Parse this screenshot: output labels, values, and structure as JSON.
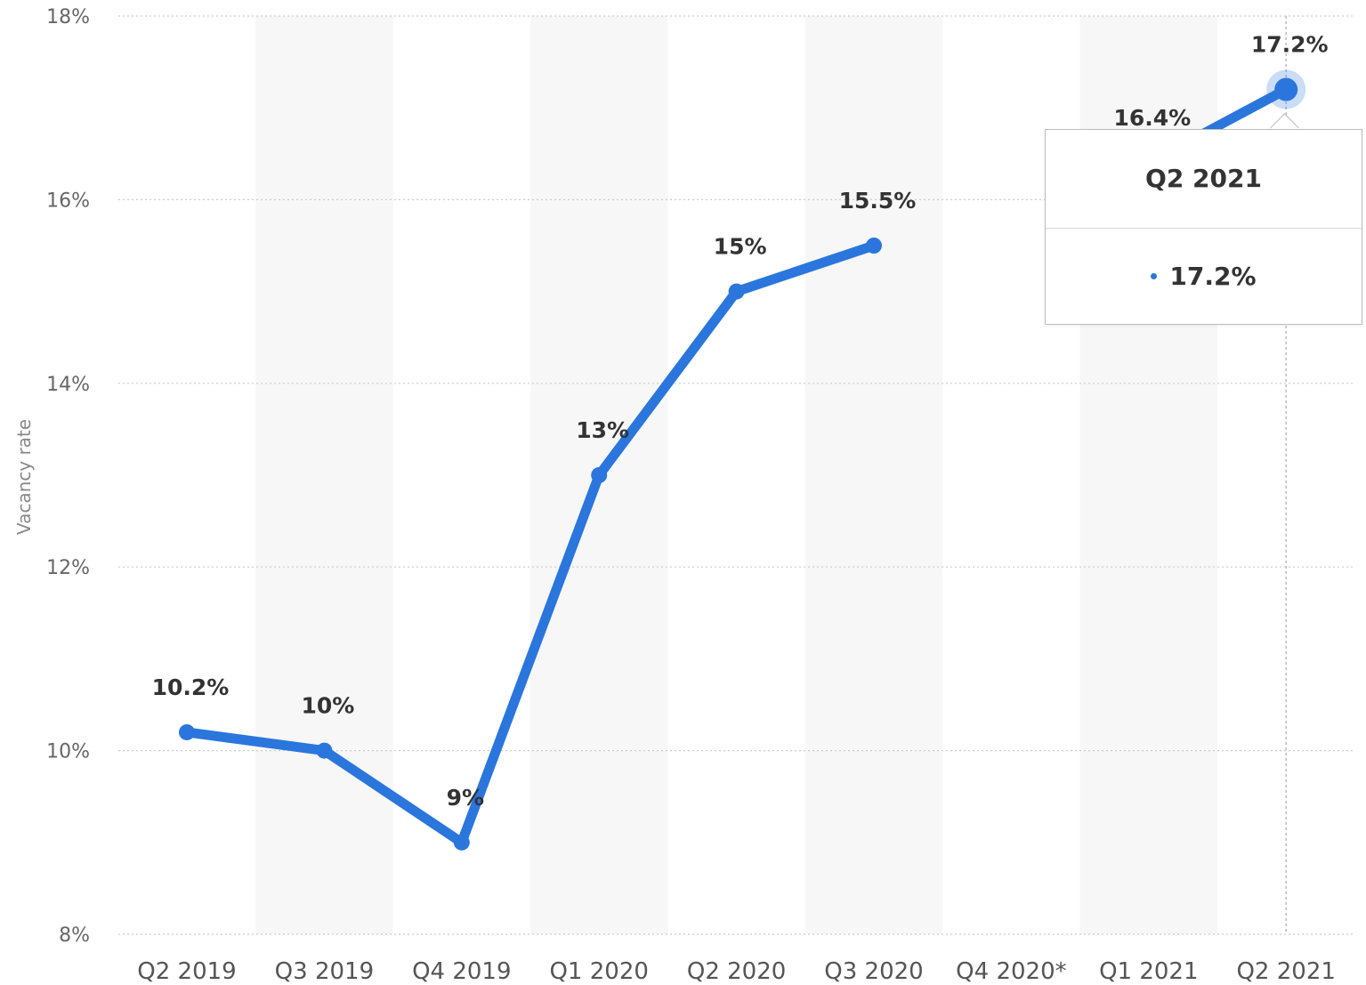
{
  "chart_data": {
    "type": "line",
    "categories": [
      "Q2 2019",
      "Q3 2019",
      "Q4 2019",
      "Q1 2020",
      "Q2 2020",
      "Q3 2020",
      "Q4 2020*",
      "Q1 2021",
      "Q2 2021"
    ],
    "series": [
      {
        "values": [
          10.2,
          10,
          9,
          13,
          15,
          15.5,
          null,
          16.4,
          17.2
        ]
      }
    ],
    "data_labels": [
      "10.2%",
      "10%",
      "9%",
      "13%",
      "15%",
      "15.5%",
      "",
      "16.4%",
      "17.2%"
    ],
    "ylabel": "Vacancy rate",
    "ylim": [
      8,
      18
    ],
    "yticks": [
      8,
      10,
      12,
      14,
      16,
      18
    ],
    "ytick_labels": [
      "8%",
      "10%",
      "12%",
      "14%",
      "16%",
      "18%"
    ],
    "grid": true,
    "colors": {
      "line": "#2a76dd",
      "band": "#f7f7f7",
      "grid": "#cccccc"
    }
  },
  "tooltip": {
    "title": "Q2 2021",
    "value": "17.2%",
    "color": "#2a76dd"
  }
}
